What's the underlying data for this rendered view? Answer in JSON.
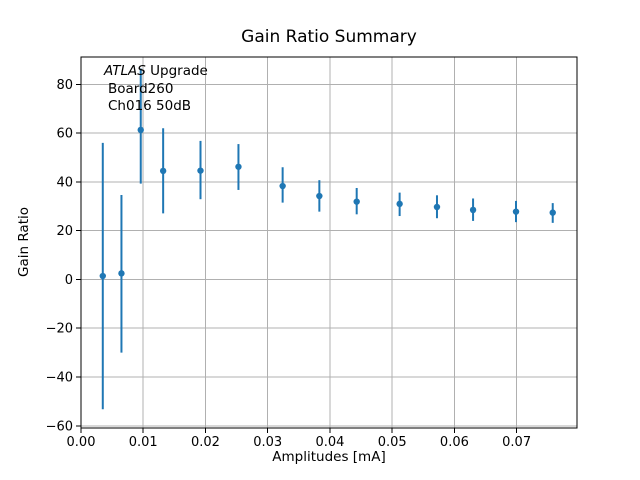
{
  "style": {
    "background": "#ffffff",
    "series_color": "#1f77b4",
    "grid_color": "#b0b0b0",
    "spine_color": "#000000",
    "text_color": "#000000"
  },
  "annotation": {
    "line1_italic": "ATLAS",
    "line1_rest": " Upgrade",
    "line2": "Board260",
    "line3": "Ch016 50dB"
  },
  "chart_data": {
    "type": "scatter",
    "title": "Gain Ratio Summary",
    "xlabel": "Amplitudes [mA]",
    "ylabel": "Gain Ratio",
    "grid": true,
    "legend": false,
    "error_bar_caps": false,
    "xlim": [
      0.0,
      0.0797
    ],
    "ylim": [
      -60.9,
      91.2
    ],
    "xticks": [
      {
        "value": 0.0,
        "label": "0.00"
      },
      {
        "value": 0.01,
        "label": "0.01"
      },
      {
        "value": 0.02,
        "label": "0.02"
      },
      {
        "value": 0.03,
        "label": "0.03"
      },
      {
        "value": 0.04,
        "label": "0.04"
      },
      {
        "value": 0.05,
        "label": "0.05"
      },
      {
        "value": 0.06,
        "label": "0.06"
      },
      {
        "value": 0.07,
        "label": "0.07"
      }
    ],
    "yticks": [
      {
        "value": -60,
        "label": "−60"
      },
      {
        "value": -40,
        "label": "−40"
      },
      {
        "value": -20,
        "label": "−20"
      },
      {
        "value": 0,
        "label": "0"
      },
      {
        "value": 20,
        "label": "20"
      },
      {
        "value": 40,
        "label": "40"
      },
      {
        "value": 60,
        "label": "60"
      },
      {
        "value": 80,
        "label": "80"
      }
    ],
    "series": [
      {
        "name": "gain-ratio-errorbar",
        "color": "#1f77b4",
        "marker": "dot",
        "points": [
          {
            "x": 0.0035,
            "y": 1.4,
            "ylow": -53.2,
            "yhigh": 56.0
          },
          {
            "x": 0.0065,
            "y": 2.5,
            "ylow": -30.0,
            "yhigh": 34.6
          },
          {
            "x": 0.0096,
            "y": 61.3,
            "ylow": 39.3,
            "yhigh": 86.5
          },
          {
            "x": 0.0132,
            "y": 44.5,
            "ylow": 27.1,
            "yhigh": 62.0
          },
          {
            "x": 0.0192,
            "y": 44.6,
            "ylow": 32.9,
            "yhigh": 56.8
          },
          {
            "x": 0.0253,
            "y": 46.2,
            "ylow": 36.7,
            "yhigh": 55.5
          },
          {
            "x": 0.0324,
            "y": 38.3,
            "ylow": 31.5,
            "yhigh": 46.0
          },
          {
            "x": 0.0383,
            "y": 34.2,
            "ylow": 27.8,
            "yhigh": 40.7
          },
          {
            "x": 0.0443,
            "y": 31.9,
            "ylow": 26.7,
            "yhigh": 37.5
          },
          {
            "x": 0.0512,
            "y": 31.0,
            "ylow": 26.0,
            "yhigh": 35.6
          },
          {
            "x": 0.0572,
            "y": 29.7,
            "ylow": 25.1,
            "yhigh": 34.5
          },
          {
            "x": 0.063,
            "y": 28.5,
            "ylow": 24.0,
            "yhigh": 33.2
          },
          {
            "x": 0.0699,
            "y": 27.8,
            "ylow": 23.5,
            "yhigh": 32.2
          },
          {
            "x": 0.0758,
            "y": 27.4,
            "ylow": 23.2,
            "yhigh": 31.3
          }
        ]
      }
    ]
  }
}
